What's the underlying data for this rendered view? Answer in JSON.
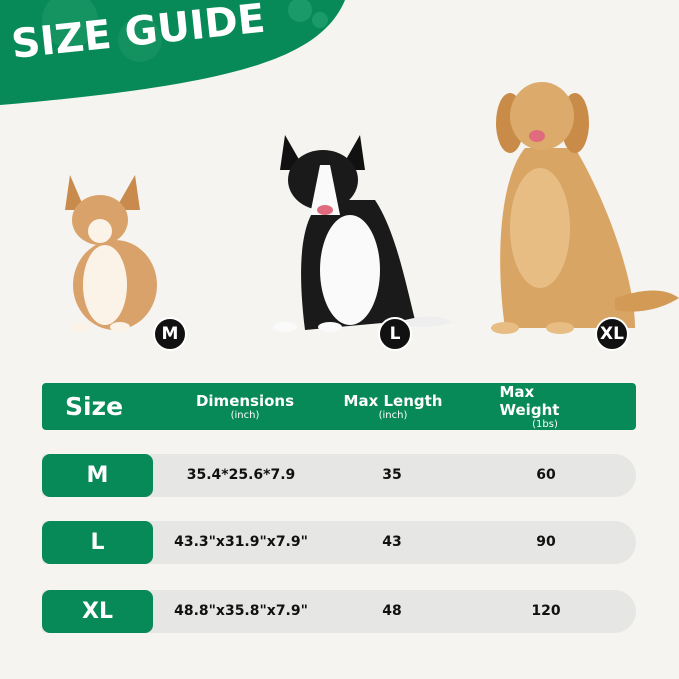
{
  "title": "SIZE GUIDE",
  "colors": {
    "brand_green": "#078a57",
    "background": "#f5f4f0",
    "row_gray": "#e6e6e4"
  },
  "dogs": [
    {
      "breed_icon": "corgi",
      "size": "M"
    },
    {
      "breed_icon": "border-collie",
      "size": "L"
    },
    {
      "breed_icon": "golden-retriever",
      "size": "XL"
    }
  ],
  "table": {
    "headers": [
      {
        "main": "Size"
      },
      {
        "main": "Dimensions",
        "sub": "(inch)"
      },
      {
        "main": "Max Length",
        "sub": "(inch)"
      },
      {
        "main": "Max Weight",
        "sub": "(1bs)"
      }
    ],
    "rows": [
      {
        "size": "M",
        "dimensions": "35.4*25.6*7.9",
        "max_length": "35",
        "max_weight": "60"
      },
      {
        "size": "L",
        "dimensions": "43.3\"x31.9\"x7.9\"",
        "max_length": "43",
        "max_weight": "90"
      },
      {
        "size": "XL",
        "dimensions": "48.8\"x35.8\"x7.9\"",
        "max_length": "48",
        "max_weight": "120"
      }
    ]
  }
}
